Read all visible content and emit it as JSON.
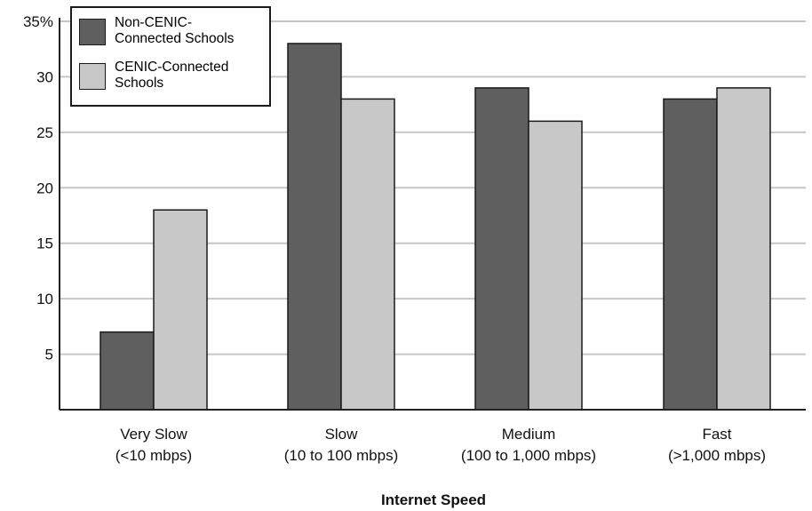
{
  "chart_data": {
    "type": "bar",
    "categories": [
      [
        "Very Slow",
        "(<10 mbps)"
      ],
      [
        "Slow",
        "(10 to 100 mbps)"
      ],
      [
        "Medium",
        "(100 to 1,000 mbps)"
      ],
      [
        "Fast",
        "(>1,000 mbps)"
      ]
    ],
    "series": [
      {
        "name": "Non-CENIC-Connected Schools",
        "values": [
          7,
          33,
          29,
          28
        ],
        "color": "#5f5f5f"
      },
      {
        "name": "CENIC-Connected Schools",
        "values": [
          18,
          28,
          26,
          29
        ],
        "color": "#c8c8c8"
      }
    ],
    "xlabel": "Internet Speed",
    "ylabel": "",
    "ylim": [
      0,
      35
    ],
    "yticks": [
      "",
      "5",
      "10",
      "15",
      "20",
      "25",
      "30",
      "35%"
    ],
    "grid": true,
    "legend_position": "top-left",
    "gridline_color": "#c6c6c6",
    "axis_color": "#222222",
    "bar_outline_color": "#1a1a1a"
  },
  "legend": {
    "items": [
      {
        "label_line1": "Non-CENIC-",
        "label_line2": "Connected Schools",
        "color": "#5f5f5f"
      },
      {
        "label_line1": "CENIC-Connected",
        "label_line2": "Schools",
        "color": "#c8c8c8"
      }
    ]
  }
}
